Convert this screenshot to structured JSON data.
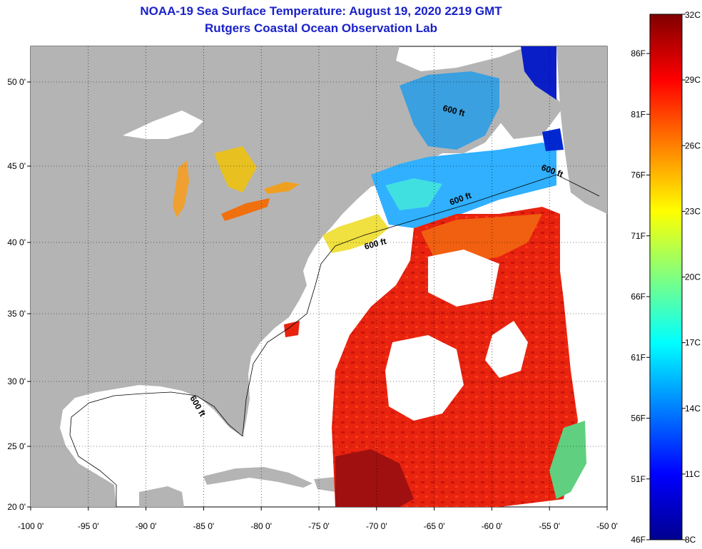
{
  "title": {
    "line1": "NOAA-19 Sea Surface Temperature:  August 19, 2020 2219 GMT",
    "line2": "Rutgers Coastal Ocean Observation Lab"
  },
  "axes": {
    "lon_ticks": [
      "-100 0'",
      "-95 0'",
      "-90 0'",
      "-85 0'",
      "-80 0'",
      "-75 0'",
      "-70 0'",
      "-65 0'",
      "-60 0'",
      "-55 0'",
      "-50 0'"
    ],
    "lat_ticks": [
      "50 0'",
      "45 0'",
      "40 0'",
      "35 0'",
      "30 0'",
      "25 0'",
      "20 0'"
    ]
  },
  "colorbar": {
    "celsius": [
      "32C",
      "29C",
      "26C",
      "23C",
      "20C",
      "17C",
      "14C",
      "11C",
      "8C"
    ],
    "fahrenheit": [
      "86F",
      "81F",
      "76F",
      "71F",
      "66F",
      "61F",
      "56F",
      "51F",
      "46F"
    ],
    "colors": [
      "#00008f",
      "#0000ff",
      "#0080ff",
      "#00ffff",
      "#80ff80",
      "#ffff00",
      "#ff8000",
      "#ff0000",
      "#800000"
    ]
  },
  "contour_labels": [
    "600 ft",
    "600 ft",
    "600 ft",
    "600 ft",
    "600 ft"
  ],
  "colors": {
    "land": "#b4b4b4",
    "cloud_or_nodata": "#ffffff",
    "warm_water": "#e8230f",
    "cool_water": "#2a7bff",
    "title": "#1a22c8"
  }
}
